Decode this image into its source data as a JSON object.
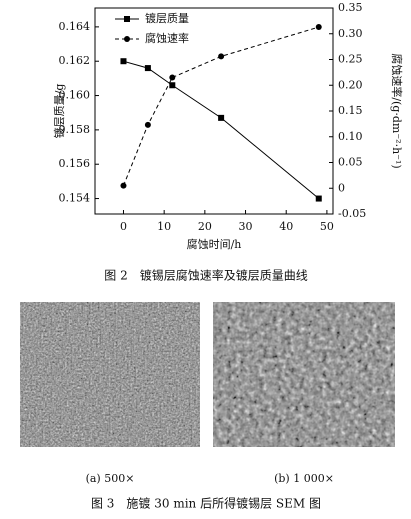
{
  "chart_data": {
    "type": "line",
    "x": [
      0,
      6,
      12,
      24,
      48
    ],
    "xlim": [
      -7,
      51.5
    ],
    "xticks": [
      0,
      10,
      20,
      30,
      40,
      50
    ],
    "ylim": [
      0.1531,
      0.1651
    ],
    "yticks": [
      0.154,
      0.156,
      0.158,
      {
        "value": 0.16,
        "label": "0.160"
      },
      0.162,
      0.164
    ],
    "y2lim": [
      -0.05,
      0.35
    ],
    "y2ticks": [
      -0.05,
      0,
      0.05,
      {
        "value": 0.1,
        "label": "0.10"
      },
      0.15,
      {
        "value": 0.2,
        "label": "0.20"
      },
      0.25,
      {
        "value": 0.3,
        "label": "0.30"
      },
      0.35
    ],
    "xlabel": "腐蚀时间/h",
    "ylabel": "镀层质量/g",
    "y2label": "腐蚀速率/(g·dm⁻²·h⁻¹)",
    "legend": "upper left",
    "series": [
      {
        "name": "镀层质量",
        "color": "#000000",
        "marker": "square",
        "linestyle": "solid",
        "values": [
          0.162,
          0.1616,
          0.1606,
          0.1587,
          0.154
        ]
      },
      {
        "name": "腐蚀速率",
        "color": "#000000",
        "marker": "circle",
        "linestyle": "dashed",
        "axis": "y2",
        "values": [
          0.005,
          0.123,
          0.215,
          0.256,
          0.313
        ]
      }
    ]
  },
  "figure2": {
    "caption": "图 2　镀锡层腐蚀速率及镀层质量曲线"
  },
  "figure3": {
    "panels": [
      "(a)  500×",
      "(b)  1 000×"
    ],
    "caption": "图 3　施镀 30 min 后所得镀锡层 SEM 图"
  }
}
